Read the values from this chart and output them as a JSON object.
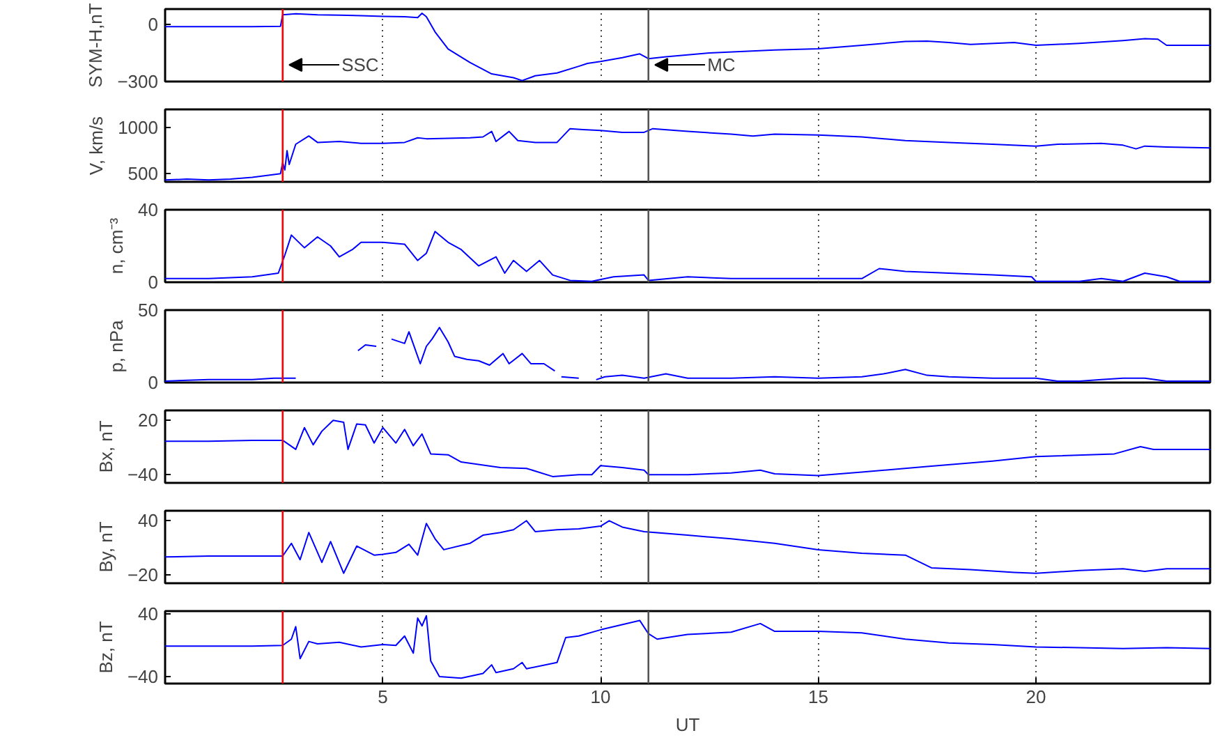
{
  "chart_data": [
    {
      "type": "line",
      "ylabel": "SYM-H,nT",
      "xlim": [
        0,
        24
      ],
      "xticks": [
        5,
        10,
        15,
        20
      ],
      "ylim": [
        -300,
        80
      ],
      "yticks": [
        -300,
        0
      ],
      "grid": "x",
      "tick_labels": "y",
      "ref_lines": [
        {
          "axis": "x",
          "value": 2.7,
          "label": "SSC",
          "color": "#ff0000"
        },
        {
          "axis": "x",
          "value": 11.1,
          "label": "MC",
          "color": "#555555"
        }
      ],
      "series": [
        {
          "color": "#0000ff",
          "x": [
            0,
            1,
            2,
            2.65,
            2.7,
            3,
            3.5,
            4,
            4.5,
            5,
            5.5,
            5.8,
            5.9,
            6.0,
            6.2,
            6.5,
            7,
            7.5,
            8,
            8.2,
            8.5,
            9,
            9.5,
            9.7,
            10,
            10.5,
            10.9,
            11.1,
            11.5,
            12.5,
            14,
            15,
            16,
            17,
            17.5,
            18,
            18.5,
            19.5,
            20,
            21,
            22,
            22.5,
            22.8,
            23,
            24
          ],
          "values": [
            -12,
            -12,
            -12,
            -10,
            50,
            55,
            50,
            48,
            45,
            42,
            40,
            35,
            58,
            40,
            -40,
            -130,
            -200,
            -260,
            -280,
            -295,
            -270,
            -255,
            -220,
            -205,
            -195,
            -175,
            -155,
            -180,
            -170,
            -150,
            -135,
            -128,
            -110,
            -90,
            -88,
            -95,
            -105,
            -95,
            -110,
            -100,
            -85,
            -75,
            -78,
            -110,
            -110
          ]
        }
      ]
    },
    {
      "type": "line",
      "ylabel": "V, km/s",
      "xlim": [
        0,
        24
      ],
      "xticks": [
        5,
        10,
        15,
        20
      ],
      "ylim": [
        410,
        1200
      ],
      "yticks": [
        500,
        1000
      ],
      "grid": "x",
      "tick_labels": "y",
      "ref_lines": [
        {
          "axis": "x",
          "value": 2.7,
          "color": "#ff0000"
        },
        {
          "axis": "x",
          "value": 11.1,
          "color": "#555555"
        }
      ],
      "series": [
        {
          "color": "#0000ff",
          "x": [
            0,
            0.5,
            1,
            1.5,
            2,
            2.5,
            2.65,
            2.7,
            2.75,
            2.8,
            2.85,
            3,
            3.3,
            3.5,
            4,
            4.5,
            5,
            5.5,
            5.8,
            6,
            7,
            7.3,
            7.5,
            7.6,
            7.9,
            8.1,
            8.5,
            9,
            9.3,
            9.6,
            10,
            10.5,
            11.0,
            11.2,
            12,
            13,
            13.5,
            14,
            15,
            16,
            17,
            18,
            19,
            20,
            20.5,
            21.5,
            22,
            22.3,
            22.5,
            23,
            24
          ],
          "values": [
            430,
            440,
            430,
            440,
            460,
            490,
            500,
            620,
            540,
            750,
            600,
            820,
            910,
            840,
            850,
            830,
            830,
            840,
            890,
            880,
            890,
            900,
            960,
            850,
            960,
            860,
            840,
            840,
            990,
            980,
            970,
            950,
            950,
            990,
            960,
            930,
            910,
            930,
            920,
            900,
            860,
            840,
            820,
            800,
            820,
            830,
            810,
            770,
            800,
            790,
            780
          ]
        }
      ]
    },
    {
      "type": "line",
      "ylabel": "n, cm⁻³",
      "xlim": [
        0,
        24
      ],
      "xticks": [
        5,
        10,
        15,
        20
      ],
      "ylim": [
        0,
        40
      ],
      "yticks": [
        0,
        40
      ],
      "grid": "x",
      "tick_labels": "y",
      "ref_lines": [
        {
          "axis": "x",
          "value": 2.7,
          "color": "#ff0000"
        },
        {
          "axis": "x",
          "value": 11.1,
          "color": "#555555"
        }
      ],
      "series": [
        {
          "color": "#0000ff",
          "x": [
            0,
            1,
            2,
            2.6,
            2.75,
            2.9,
            3.2,
            3.5,
            3.8,
            4,
            4.3,
            4.5,
            5,
            5.5,
            5.8,
            6,
            6.2,
            6.5,
            6.8,
            7.2,
            7.6,
            7.8,
            8,
            8.3,
            8.6,
            8.9,
            9.3,
            9.8,
            10.3,
            11,
            11.1,
            12,
            13,
            14,
            15,
            16,
            16.4,
            17,
            18,
            19,
            19.9,
            20,
            21,
            21.5,
            22,
            22.5,
            23,
            23.3,
            24
          ],
          "values": [
            2,
            2,
            3,
            5,
            15,
            26,
            19,
            25,
            20,
            14,
            18,
            22,
            22,
            21,
            12,
            16,
            28,
            22,
            18,
            9,
            14,
            5,
            12,
            6,
            12,
            4,
            1,
            0.5,
            3,
            4,
            1,
            3,
            2,
            2,
            2,
            2,
            7.5,
            6,
            5,
            4,
            3,
            0.5,
            0.5,
            2,
            0.5,
            5,
            3,
            0.5,
            0.5
          ]
        }
      ]
    },
    {
      "type": "line",
      "ylabel": "p, nPa",
      "xlim": [
        0,
        24
      ],
      "xticks": [
        5,
        10,
        15,
        20
      ],
      "ylim": [
        0,
        50
      ],
      "yticks": [
        0,
        50
      ],
      "grid": "x",
      "tick_labels": "y",
      "ref_lines": [
        {
          "axis": "x",
          "value": 2.7,
          "color": "#ff0000"
        },
        {
          "axis": "x",
          "value": 11.1,
          "color": "#555555"
        }
      ],
      "series": [
        {
          "color": "#0000ff",
          "x": [
            0,
            1,
            2,
            2.5,
            3,
            3.05,
            4.43,
            4.6,
            4.85,
            4.9,
            5.2,
            5.5,
            5.6,
            5.86,
            6.0,
            6.13,
            6.3,
            6.5,
            6.65,
            6.93,
            7.2,
            7.45,
            7.76,
            7.9,
            8.2,
            8.4,
            8.7,
            8.95,
            9.0,
            9.1,
            9.5,
            9.6,
            9.9,
            10.1,
            10.5,
            11,
            11.5,
            12,
            13,
            14,
            15,
            16,
            16.5,
            17,
            17.5,
            18,
            19,
            20,
            20.5,
            21,
            21.5,
            22,
            22.5,
            23,
            24
          ],
          "values": [
            1,
            2,
            2,
            3,
            3,
            null,
            22,
            26,
            25,
            null,
            30,
            27,
            35,
            13,
            25,
            30,
            38,
            28,
            18,
            16,
            15,
            12,
            20,
            13,
            20,
            13,
            13,
            8,
            null,
            4,
            3,
            null,
            2,
            4,
            5,
            3,
            6,
            3,
            3,
            4,
            3,
            4,
            6,
            9,
            5,
            4,
            3,
            3,
            1,
            1,
            2,
            3,
            3,
            1,
            1
          ]
        }
      ]
    },
    {
      "type": "line",
      "ylabel": "Bx, nT",
      "xlim": [
        0,
        24
      ],
      "xticks": [
        5,
        10,
        15,
        20
      ],
      "ylim": [
        -49,
        31
      ],
      "yticks": [
        -40,
        20
      ],
      "grid": "x",
      "tick_labels": "y",
      "ref_lines": [
        {
          "axis": "x",
          "value": 2.7,
          "color": "#ff0000"
        },
        {
          "axis": "x",
          "value": 11.1,
          "color": "#555555"
        }
      ],
      "series": [
        {
          "color": "#0000ff",
          "x": [
            0,
            1,
            2,
            2.7,
            3.0,
            3.2,
            3.4,
            3.6,
            3.86,
            4.1,
            4.2,
            4.4,
            4.6,
            4.8,
            5,
            5.3,
            5.5,
            5.7,
            5.9,
            6.1,
            6.5,
            6.8,
            7.7,
            8.3,
            8.9,
            9.5,
            9.8,
            10,
            10.5,
            11.0,
            11.1,
            12,
            13,
            13.67,
            14,
            15,
            16,
            17.5,
            19,
            20,
            21.8,
            22.4,
            22.7,
            23,
            24
          ],
          "values": [
            -3,
            -3,
            -2,
            -2,
            -12,
            12,
            -7,
            8,
            20,
            18,
            -12,
            16,
            15,
            -5,
            12,
            -5,
            10,
            -8,
            5,
            -17,
            -18,
            -26,
            -32,
            -33,
            -42,
            -40,
            -40,
            -30,
            -32,
            -35,
            -40,
            -40,
            -38,
            -35,
            -39,
            -41,
            -37,
            -31,
            -25,
            -20,
            -17,
            -9,
            -12,
            -12,
            -12
          ]
        }
      ]
    },
    {
      "type": "line",
      "ylabel": "By, nT",
      "xlim": [
        0,
        24
      ],
      "xticks": [
        5,
        10,
        15,
        20
      ],
      "ylim": [
        -29,
        51
      ],
      "yticks": [
        -20,
        40
      ],
      "grid": "x",
      "tick_labels": "y",
      "ref_lines": [
        {
          "axis": "x",
          "value": 2.7,
          "color": "#ff0000"
        },
        {
          "axis": "x",
          "value": 11.1,
          "color": "#555555"
        }
      ],
      "series": [
        {
          "color": "#0000ff",
          "x": [
            0,
            1,
            2,
            2.7,
            2.9,
            3.1,
            3.3,
            3.6,
            3.8,
            4.1,
            4.4,
            4.8,
            5,
            5.3,
            5.6,
            5.8,
            6.0,
            6.2,
            6.4,
            7.0,
            7.3,
            7.7,
            8.0,
            8.3,
            8.5,
            9,
            9.5,
            10.0,
            10.2,
            10.5,
            11,
            12,
            13,
            14,
            15,
            16,
            17,
            17.6,
            18.5,
            19.5,
            20,
            21,
            22,
            22.5,
            23,
            24
          ],
          "values": [
            0,
            1,
            1,
            1,
            15,
            -3,
            27,
            -6,
            17,
            -18,
            12,
            2,
            3,
            5,
            14,
            2,
            37,
            20,
            8,
            15,
            24,
            27,
            30,
            40,
            28,
            30,
            31,
            34,
            40,
            33,
            28,
            24,
            20,
            15,
            8,
            4,
            2,
            -12,
            -14,
            -17,
            -18,
            -15,
            -13,
            -16,
            -13,
            -13
          ]
        }
      ]
    },
    {
      "type": "line",
      "ylabel": "Bz, nT",
      "xlabel": "UT",
      "xlim": [
        0,
        24
      ],
      "xticks": [
        5,
        10,
        15,
        20
      ],
      "ylim": [
        -49,
        44
      ],
      "yticks": [
        -40,
        40
      ],
      "grid": "x",
      "ref_lines": [
        {
          "axis": "x",
          "value": 2.7,
          "color": "#ff0000"
        },
        {
          "axis": "x",
          "value": 11.1,
          "color": "#555555"
        }
      ],
      "series": [
        {
          "color": "#0000ff",
          "x": [
            0,
            1,
            2,
            2.7,
            2.9,
            3.0,
            3.1,
            3.3,
            3.5,
            4,
            4.5,
            5,
            5.3,
            5.5,
            5.7,
            5.8,
            5.9,
            6.0,
            6.1,
            6.3,
            6.8,
            7.3,
            7.5,
            7.6,
            8.0,
            8.2,
            8.3,
            9,
            9.2,
            9.5,
            10,
            10.9,
            11.1,
            11.3,
            12,
            13,
            13.67,
            14,
            15,
            16,
            17,
            18,
            19,
            20,
            21,
            22,
            23,
            24
          ],
          "values": [
            -1,
            -1,
            -1,
            0,
            8,
            24,
            -17,
            5,
            2,
            4,
            -2,
            1,
            0,
            12,
            -10,
            35,
            25,
            38,
            -20,
            -40,
            -42,
            -36,
            -25,
            -35,
            -30,
            -22,
            -30,
            -22,
            10,
            12,
            20,
            32,
            15,
            8,
            14,
            17,
            28,
            18,
            18,
            16,
            8,
            3,
            1,
            -2,
            -3,
            -4,
            -3,
            -4
          ]
        }
      ]
    }
  ]
}
